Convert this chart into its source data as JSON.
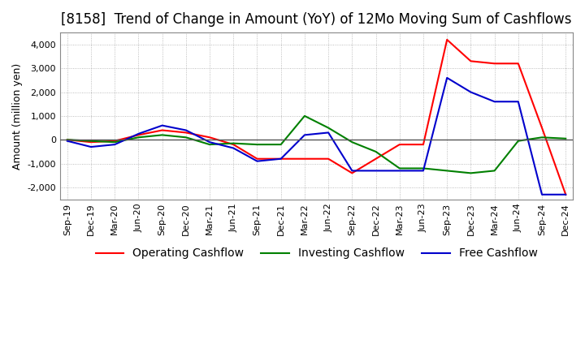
{
  "title": "[8158]  Trend of Change in Amount (YoY) of 12Mo Moving Sum of Cashflows",
  "ylabel": "Amount (million yen)",
  "x_labels": [
    "Sep-19",
    "Dec-19",
    "Mar-20",
    "Jun-20",
    "Sep-20",
    "Dec-20",
    "Mar-21",
    "Jun-21",
    "Sep-21",
    "Dec-21",
    "Mar-22",
    "Jun-22",
    "Sep-22",
    "Dec-22",
    "Mar-23",
    "Jun-23",
    "Sep-23",
    "Dec-23",
    "Mar-24",
    "Jun-24",
    "Sep-24",
    "Dec-24"
  ],
  "operating": [
    0,
    -100,
    -50,
    200,
    400,
    300,
    100,
    -200,
    -800,
    -800,
    -800,
    -800,
    -1400,
    -800,
    -200,
    -200,
    4200,
    3300,
    3200,
    3200,
    500,
    -2300
  ],
  "investing": [
    0,
    -50,
    -100,
    100,
    200,
    100,
    -200,
    -150,
    -200,
    -200,
    1000,
    500,
    -100,
    -500,
    -1200,
    -1200,
    -1300,
    -1400,
    -1300,
    -50,
    100,
    50
  ],
  "free": [
    -50,
    -300,
    -200,
    250,
    600,
    400,
    -100,
    -350,
    -900,
    -800,
    200,
    300,
    -1300,
    -1300,
    -1300,
    -1300,
    2600,
    2000,
    1600,
    1600,
    -2300,
    -2300
  ],
  "operating_color": "#ff0000",
  "investing_color": "#008000",
  "free_color": "#0000cc",
  "ylim": [
    -2500,
    4500
  ],
  "yticks": [
    -2000,
    -1000,
    0,
    1000,
    2000,
    3000,
    4000
  ],
  "grid_color": "#888888",
  "background_color": "#ffffff",
  "title_fontsize": 12,
  "legend_fontsize": 10,
  "tick_fontsize": 8
}
